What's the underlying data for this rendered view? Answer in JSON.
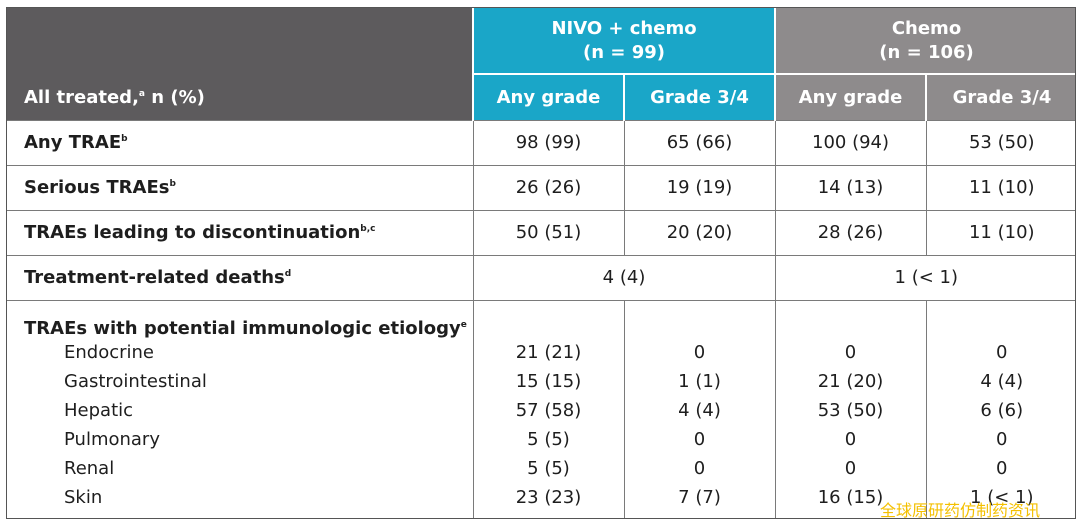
{
  "header": {
    "row_label": "All treated,",
    "row_label_sup": "a",
    "row_label_suffix": " n (%)",
    "nivo_name": "NIVO + chemo",
    "nivo_n": "(n = 99)",
    "chemo_name": "Chemo",
    "chemo_n": "(n = 106)",
    "any_grade": "Any grade",
    "grade34": "Grade 3/4"
  },
  "rows": [
    {
      "label": "Any TRAE",
      "sup": "b",
      "values": [
        "98 (99)",
        "65 (66)",
        "100 (94)",
        "53 (50)"
      ]
    },
    {
      "label": "Serious TRAEs",
      "sup": "b",
      "values": [
        "26 (26)",
        "19 (19)",
        "14 (13)",
        "11 (10)"
      ]
    },
    {
      "label": "TRAEs leading to discontinuation",
      "sup": "b,c",
      "values": [
        "50 (51)",
        "20 (20)",
        "28 (26)",
        "11 (10)"
      ]
    }
  ],
  "deaths": {
    "label": "Treatment-related deaths",
    "sup": "d",
    "nivo": "4 (4)",
    "chemo": "1 (< 1)"
  },
  "immuno": {
    "label": "TRAEs with potential immunologic etiology",
    "sup": "e",
    "items": [
      {
        "name": "Endocrine",
        "values": [
          "21 (21)",
          "0",
          "0",
          "0"
        ]
      },
      {
        "name": "Gastrointestinal",
        "values": [
          "15 (15)",
          "1 (1)",
          "21 (20)",
          "4 (4)"
        ]
      },
      {
        "name": "Hepatic",
        "values": [
          "57 (58)",
          "4 (4)",
          "53 (50)",
          "6 (6)"
        ]
      },
      {
        "name": "Pulmonary",
        "values": [
          "5 (5)",
          "0",
          "0",
          "0"
        ]
      },
      {
        "name": "Renal",
        "values": [
          "5 (5)",
          "0",
          "0",
          "0"
        ]
      },
      {
        "name": "Skin",
        "values": [
          "23 (23)",
          "7 (7)",
          "16 (15)",
          "1 (< 1)"
        ]
      }
    ]
  },
  "watermark": "全球原研药仿制药资讯",
  "colors": {
    "header_dark": "#5d5b5d",
    "nivo": "#1aa6c8",
    "chemo": "#8e8b8c",
    "watermark": "#f4c000"
  }
}
